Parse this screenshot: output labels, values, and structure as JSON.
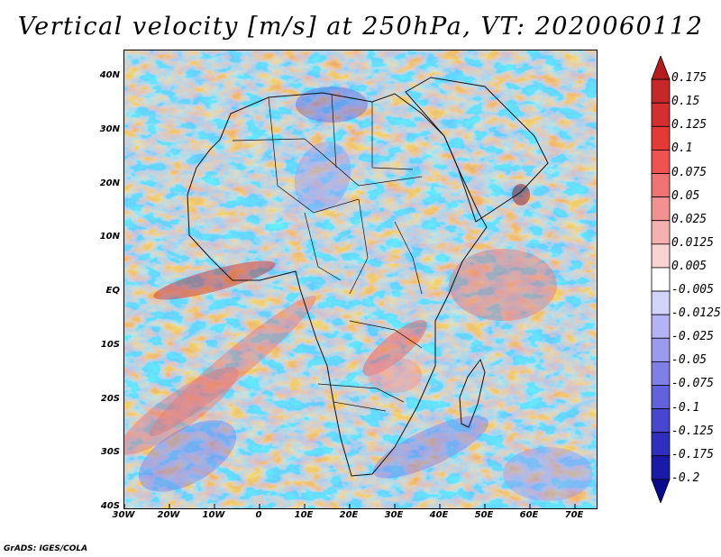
{
  "title": "Vertical velocity [m/s] at 250hPa, VT: 2020060112",
  "credit": "GrADS: IGES/COLA",
  "lat_ticks": [
    "40N",
    "30N",
    "20N",
    "10N",
    "EQ",
    "10S",
    "20S",
    "30S",
    "40S"
  ],
  "lon_ticks": [
    "30W",
    "20W",
    "10W",
    "0",
    "10E",
    "20E",
    "30E",
    "40E",
    "50E",
    "60E",
    "70E"
  ],
  "colorbar": {
    "labels": [
      "0.175",
      "0.15",
      "0.125",
      "0.1",
      "0.075",
      "0.05",
      "0.025",
      "0.0125",
      "0.005",
      "-0.005",
      "-0.0125",
      "-0.025",
      "-0.05",
      "-0.075",
      "-0.1",
      "-0.125",
      "-0.175",
      "-0.2"
    ],
    "colors": [
      "#b71c1c",
      "#c62828",
      "#d32f2f",
      "#e53935",
      "#ef5350",
      "#ef7373",
      "#f39090",
      "#f7b0b0",
      "#fbd2d2",
      "#ffffff",
      "#d2d2fb",
      "#b3b3f5",
      "#9a9aee",
      "#7f7fe6",
      "#6262dc",
      "#4646cf",
      "#2e2ebf",
      "#1a1aa8",
      "#0a0a8c"
    ]
  },
  "map": {
    "lon_range": [
      -30,
      75
    ],
    "lat_range": [
      -40,
      45
    ],
    "land_color": "#cfcff4",
    "ocean_color": "#dedef7"
  }
}
